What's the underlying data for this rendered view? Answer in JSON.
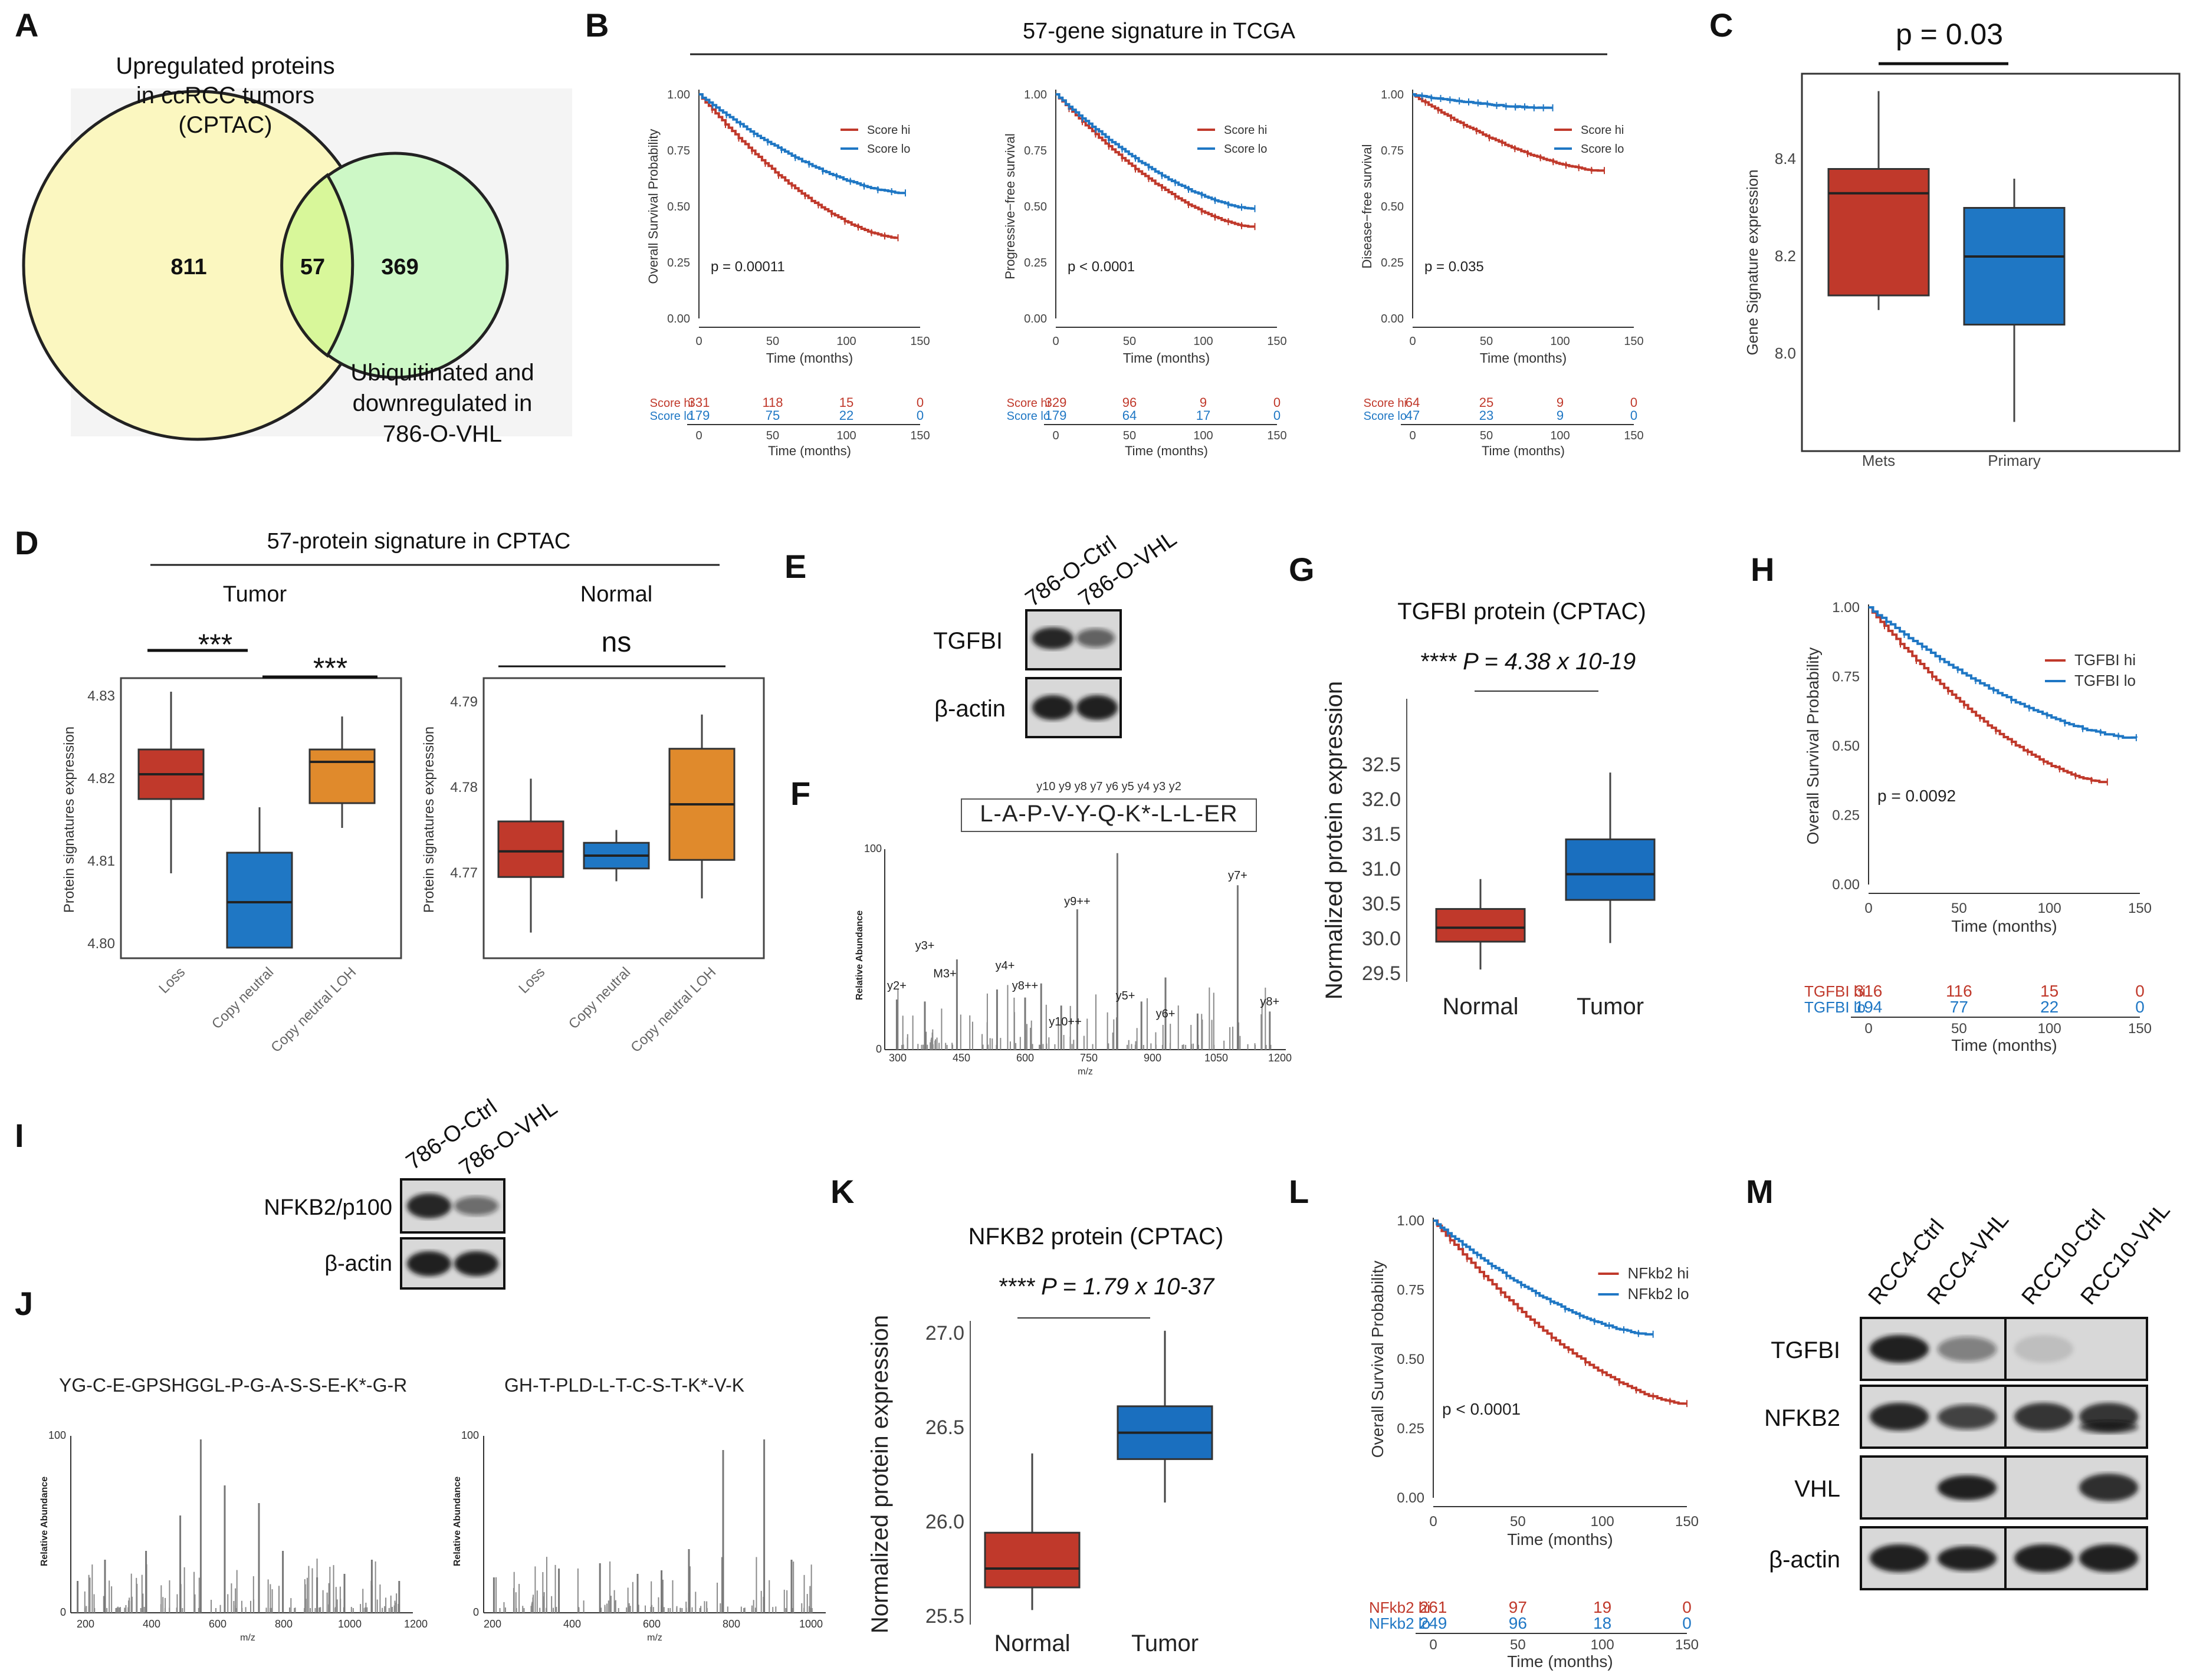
{
  "panel_labels": [
    "A",
    "B",
    "C",
    "D",
    "E",
    "F",
    "G",
    "H",
    "I",
    "J",
    "K",
    "L",
    "M"
  ],
  "colors": {
    "hi": "#c0392b",
    "lo": "#1f77c4",
    "tumor_box": "#1a6fbf",
    "normal_box": "#c0392b",
    "orange": "#e08a2c",
    "venn_left": "#fbf7c0",
    "venn_right": "#cdf8c6",
    "venn_overlap": "#d8f79a"
  },
  "A": {
    "top_label": [
      "Upregulated proteins",
      "in ccRCC tumors",
      "(CPTAC)"
    ],
    "bottom_label": [
      "Ubiquitinated and",
      "downregulated in",
      "786-O-VHL"
    ],
    "left_count": "811",
    "overlap_count": "57",
    "right_count": "369"
  },
  "B": {
    "title": "57-gene signature in TCGA",
    "plots": [
      {
        "ylabel": "Overall Survival Probability",
        "pval": "p = 0.00011",
        "legend_hi": "Score hi",
        "legend_lo": "Score lo",
        "risk_hi_label": "Score hi",
        "risk_lo_label": "Score lo",
        "risk_hi": [
          "331",
          "118",
          "15",
          "0"
        ],
        "risk_lo": [
          "179",
          "75",
          "22",
          "0"
        ]
      },
      {
        "ylabel": "Progressive−free survival",
        "pval": "p < 0.0001",
        "legend_hi": "Score hi",
        "legend_lo": "Score lo",
        "risk_hi_label": "Score hi",
        "risk_lo_label": "Score lo",
        "risk_hi": [
          "329",
          "96",
          "9",
          "0"
        ],
        "risk_lo": [
          "179",
          "64",
          "17",
          "0"
        ]
      },
      {
        "ylabel": "Disease−free survival",
        "pval": "p = 0.035",
        "legend_hi": "Score hi",
        "legend_lo": "Score lo",
        "risk_hi_label": "Score hi",
        "risk_lo_label": "Score lo",
        "risk_hi": [
          "64",
          "25",
          "9",
          "0"
        ],
        "risk_lo": [
          "47",
          "23",
          "9",
          "0"
        ]
      }
    ],
    "yticks": [
      "1.00",
      "0.75",
      "0.50",
      "0.25",
      "0.00"
    ],
    "xticks": [
      "0",
      "50",
      "100",
      "150"
    ],
    "xlabel": "Time (months)"
  },
  "C": {
    "pval": "p  = 0.03",
    "ylabel": "Gene Signature expression",
    "yticks": [
      "8.4",
      "8.2",
      "8.0"
    ],
    "categories": [
      "Mets",
      "Primary"
    ]
  },
  "D": {
    "title": "57-protein signature in CPTAC",
    "tumor_label": "Tumor",
    "normal_label": "Normal",
    "sig1": "***",
    "sig2": "***",
    "sig_ns": "ns",
    "ylabel": "Protein signatures expression",
    "tumor_yticks": [
      "4.83",
      "4.82",
      "4.81",
      "4.80"
    ],
    "normal_yticks": [
      "4.79",
      "4.78",
      "4.77"
    ],
    "categories": [
      "Loss",
      "Copy neutral",
      "Copy neutral LOH"
    ]
  },
  "E": {
    "lanes": [
      "786-O-Ctrl",
      "786-O-VHL"
    ],
    "rows": [
      "TGFBI",
      "β-actin"
    ]
  },
  "F": {
    "peptide": "L-A-P-V-Y-Q-K*-L-L-ER",
    "ions_top": "y10 y9 y8 y7 y6 y5 y4 y3 y2",
    "ylabel": "Relative Abundance",
    "xlabel": "m/z",
    "xticks": [
      "300",
      "450",
      "600",
      "750",
      "900",
      "1050",
      "1200"
    ],
    "ytop": "100",
    "ybottom": "0",
    "peak_labels": [
      "y2+",
      "y3+",
      "M3+",
      "y4+",
      "y8++",
      "y9++",
      "y10++",
      "y5+",
      "y6+",
      "y7+",
      "y8+"
    ]
  },
  "G": {
    "title": "TGFBI protein (CPTAC)",
    "pval": "**** P = 4.38 x 10-19",
    "ylabel": "Normalized protein expression",
    "yticks": [
      "32.5",
      "32.0",
      "31.5",
      "31.0",
      "30.5",
      "30.0",
      "29.5"
    ],
    "categories": [
      "Normal",
      "Tumor"
    ]
  },
  "H": {
    "ylabel": "Overall Survival Probability",
    "legend_hi": "TGFBI hi",
    "legend_lo": "TGFBI lo",
    "pval": "p = 0.0092",
    "risk_hi_label": "TGFBI hi",
    "risk_lo_label": "TGFBI lo",
    "risk_hi": [
      "316",
      "116",
      "15",
      "0"
    ],
    "risk_lo": [
      "194",
      "77",
      "22",
      "0"
    ],
    "xlabel": "Time (months)"
  },
  "I": {
    "lanes": [
      "786-O-Ctrl",
      "786-O-VHL"
    ],
    "rows": [
      "NFKB2/p100",
      "β-actin"
    ]
  },
  "J": {
    "peptide1": "YG-C-E-GPSHGGL-P-G-A-S-S-E-K*-G-R",
    "peptide2": "GH-T-PLD-L-T-C-S-T-K*-V-K",
    "ylabel": "Relative Abundance",
    "xlabel": "m/z",
    "xticks1": [
      "200",
      "400",
      "600",
      "800",
      "1000",
      "1200"
    ],
    "xticks2": [
      "200",
      "400",
      "600",
      "800",
      "1000"
    ],
    "ytop": "100",
    "ybottom": "0"
  },
  "K": {
    "title": "NFKB2 protein (CPTAC)",
    "pval": "**** P = 1.79 x 10-37",
    "ylabel": "Normalized protein expression",
    "yticks": [
      "27.0",
      "26.5",
      "26.0",
      "25.5"
    ],
    "categories": [
      "Normal",
      "Tumor"
    ]
  },
  "L": {
    "ylabel": "Overall Survival Probability",
    "legend_hi": "NFkb2 hi",
    "legend_lo": "NFkb2 lo",
    "pval": "p < 0.0001",
    "risk_hi_label": "NFkb2 hi",
    "risk_lo_label": "NFkb2 lo",
    "risk_hi": [
      "261",
      "97",
      "19",
      "0"
    ],
    "risk_lo": [
      "249",
      "96",
      "18",
      "0"
    ],
    "xlabel": "Time (months)"
  },
  "M": {
    "lanes": [
      "RCC4-Ctrl",
      "RCC4-VHL",
      "RCC10-Ctrl",
      "RCC10-VHL"
    ],
    "rows": [
      "TGFBI",
      "NFKB2",
      "VHL",
      "β-actin"
    ]
  }
}
